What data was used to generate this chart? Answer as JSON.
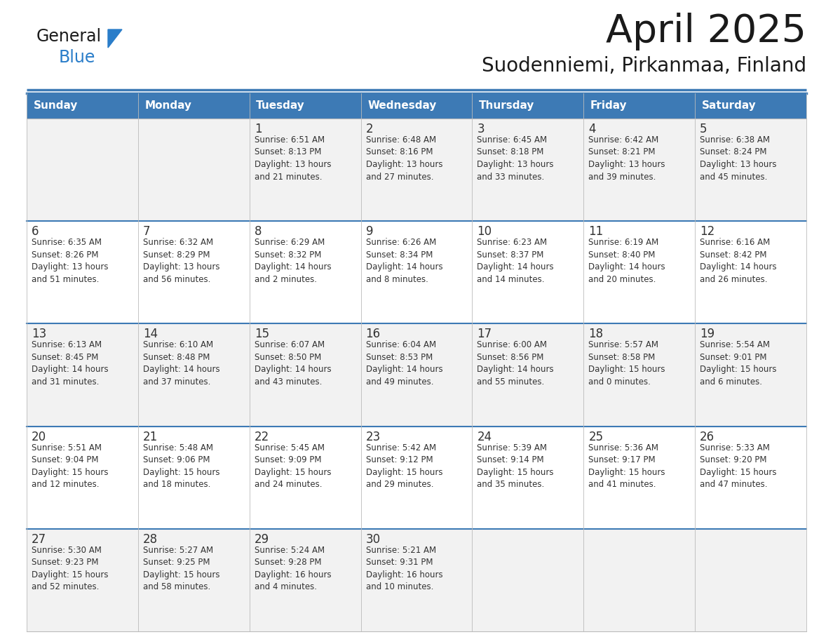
{
  "title": "April 2025",
  "subtitle": "Suodenniemi, Pirkanmaa, Finland",
  "header_color": "#3d7ab5",
  "header_text_color": "#ffffff",
  "cell_bg_even": "#f2f2f2",
  "cell_bg_odd": "#ffffff",
  "day_names": [
    "Sunday",
    "Monday",
    "Tuesday",
    "Wednesday",
    "Thursday",
    "Friday",
    "Saturday"
  ],
  "weeks": [
    [
      {
        "day": "",
        "info": ""
      },
      {
        "day": "",
        "info": ""
      },
      {
        "day": "1",
        "info": "Sunrise: 6:51 AM\nSunset: 8:13 PM\nDaylight: 13 hours\nand 21 minutes."
      },
      {
        "day": "2",
        "info": "Sunrise: 6:48 AM\nSunset: 8:16 PM\nDaylight: 13 hours\nand 27 minutes."
      },
      {
        "day": "3",
        "info": "Sunrise: 6:45 AM\nSunset: 8:18 PM\nDaylight: 13 hours\nand 33 minutes."
      },
      {
        "day": "4",
        "info": "Sunrise: 6:42 AM\nSunset: 8:21 PM\nDaylight: 13 hours\nand 39 minutes."
      },
      {
        "day": "5",
        "info": "Sunrise: 6:38 AM\nSunset: 8:24 PM\nDaylight: 13 hours\nand 45 minutes."
      }
    ],
    [
      {
        "day": "6",
        "info": "Sunrise: 6:35 AM\nSunset: 8:26 PM\nDaylight: 13 hours\nand 51 minutes."
      },
      {
        "day": "7",
        "info": "Sunrise: 6:32 AM\nSunset: 8:29 PM\nDaylight: 13 hours\nand 56 minutes."
      },
      {
        "day": "8",
        "info": "Sunrise: 6:29 AM\nSunset: 8:32 PM\nDaylight: 14 hours\nand 2 minutes."
      },
      {
        "day": "9",
        "info": "Sunrise: 6:26 AM\nSunset: 8:34 PM\nDaylight: 14 hours\nand 8 minutes."
      },
      {
        "day": "10",
        "info": "Sunrise: 6:23 AM\nSunset: 8:37 PM\nDaylight: 14 hours\nand 14 minutes."
      },
      {
        "day": "11",
        "info": "Sunrise: 6:19 AM\nSunset: 8:40 PM\nDaylight: 14 hours\nand 20 minutes."
      },
      {
        "day": "12",
        "info": "Sunrise: 6:16 AM\nSunset: 8:42 PM\nDaylight: 14 hours\nand 26 minutes."
      }
    ],
    [
      {
        "day": "13",
        "info": "Sunrise: 6:13 AM\nSunset: 8:45 PM\nDaylight: 14 hours\nand 31 minutes."
      },
      {
        "day": "14",
        "info": "Sunrise: 6:10 AM\nSunset: 8:48 PM\nDaylight: 14 hours\nand 37 minutes."
      },
      {
        "day": "15",
        "info": "Sunrise: 6:07 AM\nSunset: 8:50 PM\nDaylight: 14 hours\nand 43 minutes."
      },
      {
        "day": "16",
        "info": "Sunrise: 6:04 AM\nSunset: 8:53 PM\nDaylight: 14 hours\nand 49 minutes."
      },
      {
        "day": "17",
        "info": "Sunrise: 6:00 AM\nSunset: 8:56 PM\nDaylight: 14 hours\nand 55 minutes."
      },
      {
        "day": "18",
        "info": "Sunrise: 5:57 AM\nSunset: 8:58 PM\nDaylight: 15 hours\nand 0 minutes."
      },
      {
        "day": "19",
        "info": "Sunrise: 5:54 AM\nSunset: 9:01 PM\nDaylight: 15 hours\nand 6 minutes."
      }
    ],
    [
      {
        "day": "20",
        "info": "Sunrise: 5:51 AM\nSunset: 9:04 PM\nDaylight: 15 hours\nand 12 minutes."
      },
      {
        "day": "21",
        "info": "Sunrise: 5:48 AM\nSunset: 9:06 PM\nDaylight: 15 hours\nand 18 minutes."
      },
      {
        "day": "22",
        "info": "Sunrise: 5:45 AM\nSunset: 9:09 PM\nDaylight: 15 hours\nand 24 minutes."
      },
      {
        "day": "23",
        "info": "Sunrise: 5:42 AM\nSunset: 9:12 PM\nDaylight: 15 hours\nand 29 minutes."
      },
      {
        "day": "24",
        "info": "Sunrise: 5:39 AM\nSunset: 9:14 PM\nDaylight: 15 hours\nand 35 minutes."
      },
      {
        "day": "25",
        "info": "Sunrise: 5:36 AM\nSunset: 9:17 PM\nDaylight: 15 hours\nand 41 minutes."
      },
      {
        "day": "26",
        "info": "Sunrise: 5:33 AM\nSunset: 9:20 PM\nDaylight: 15 hours\nand 47 minutes."
      }
    ],
    [
      {
        "day": "27",
        "info": "Sunrise: 5:30 AM\nSunset: 9:23 PM\nDaylight: 15 hours\nand 52 minutes."
      },
      {
        "day": "28",
        "info": "Sunrise: 5:27 AM\nSunset: 9:25 PM\nDaylight: 15 hours\nand 58 minutes."
      },
      {
        "day": "29",
        "info": "Sunrise: 5:24 AM\nSunset: 9:28 PM\nDaylight: 16 hours\nand 4 minutes."
      },
      {
        "day": "30",
        "info": "Sunrise: 5:21 AM\nSunset: 9:31 PM\nDaylight: 16 hours\nand 10 minutes."
      },
      {
        "day": "",
        "info": ""
      },
      {
        "day": "",
        "info": ""
      },
      {
        "day": "",
        "info": ""
      }
    ]
  ],
  "logo_color1": "#1a1a1a",
  "logo_color2": "#2a7dc9",
  "logo_triangle_color": "#2a7dc9",
  "title_color": "#1a1a1a",
  "subtitle_color": "#1a1a1a",
  "cell_text_color": "#333333",
  "grid_line_color": "#bbbbbb",
  "header_line_color": "#3d7ab5",
  "fig_width": 11.88,
  "fig_height": 9.18,
  "dpi": 100
}
